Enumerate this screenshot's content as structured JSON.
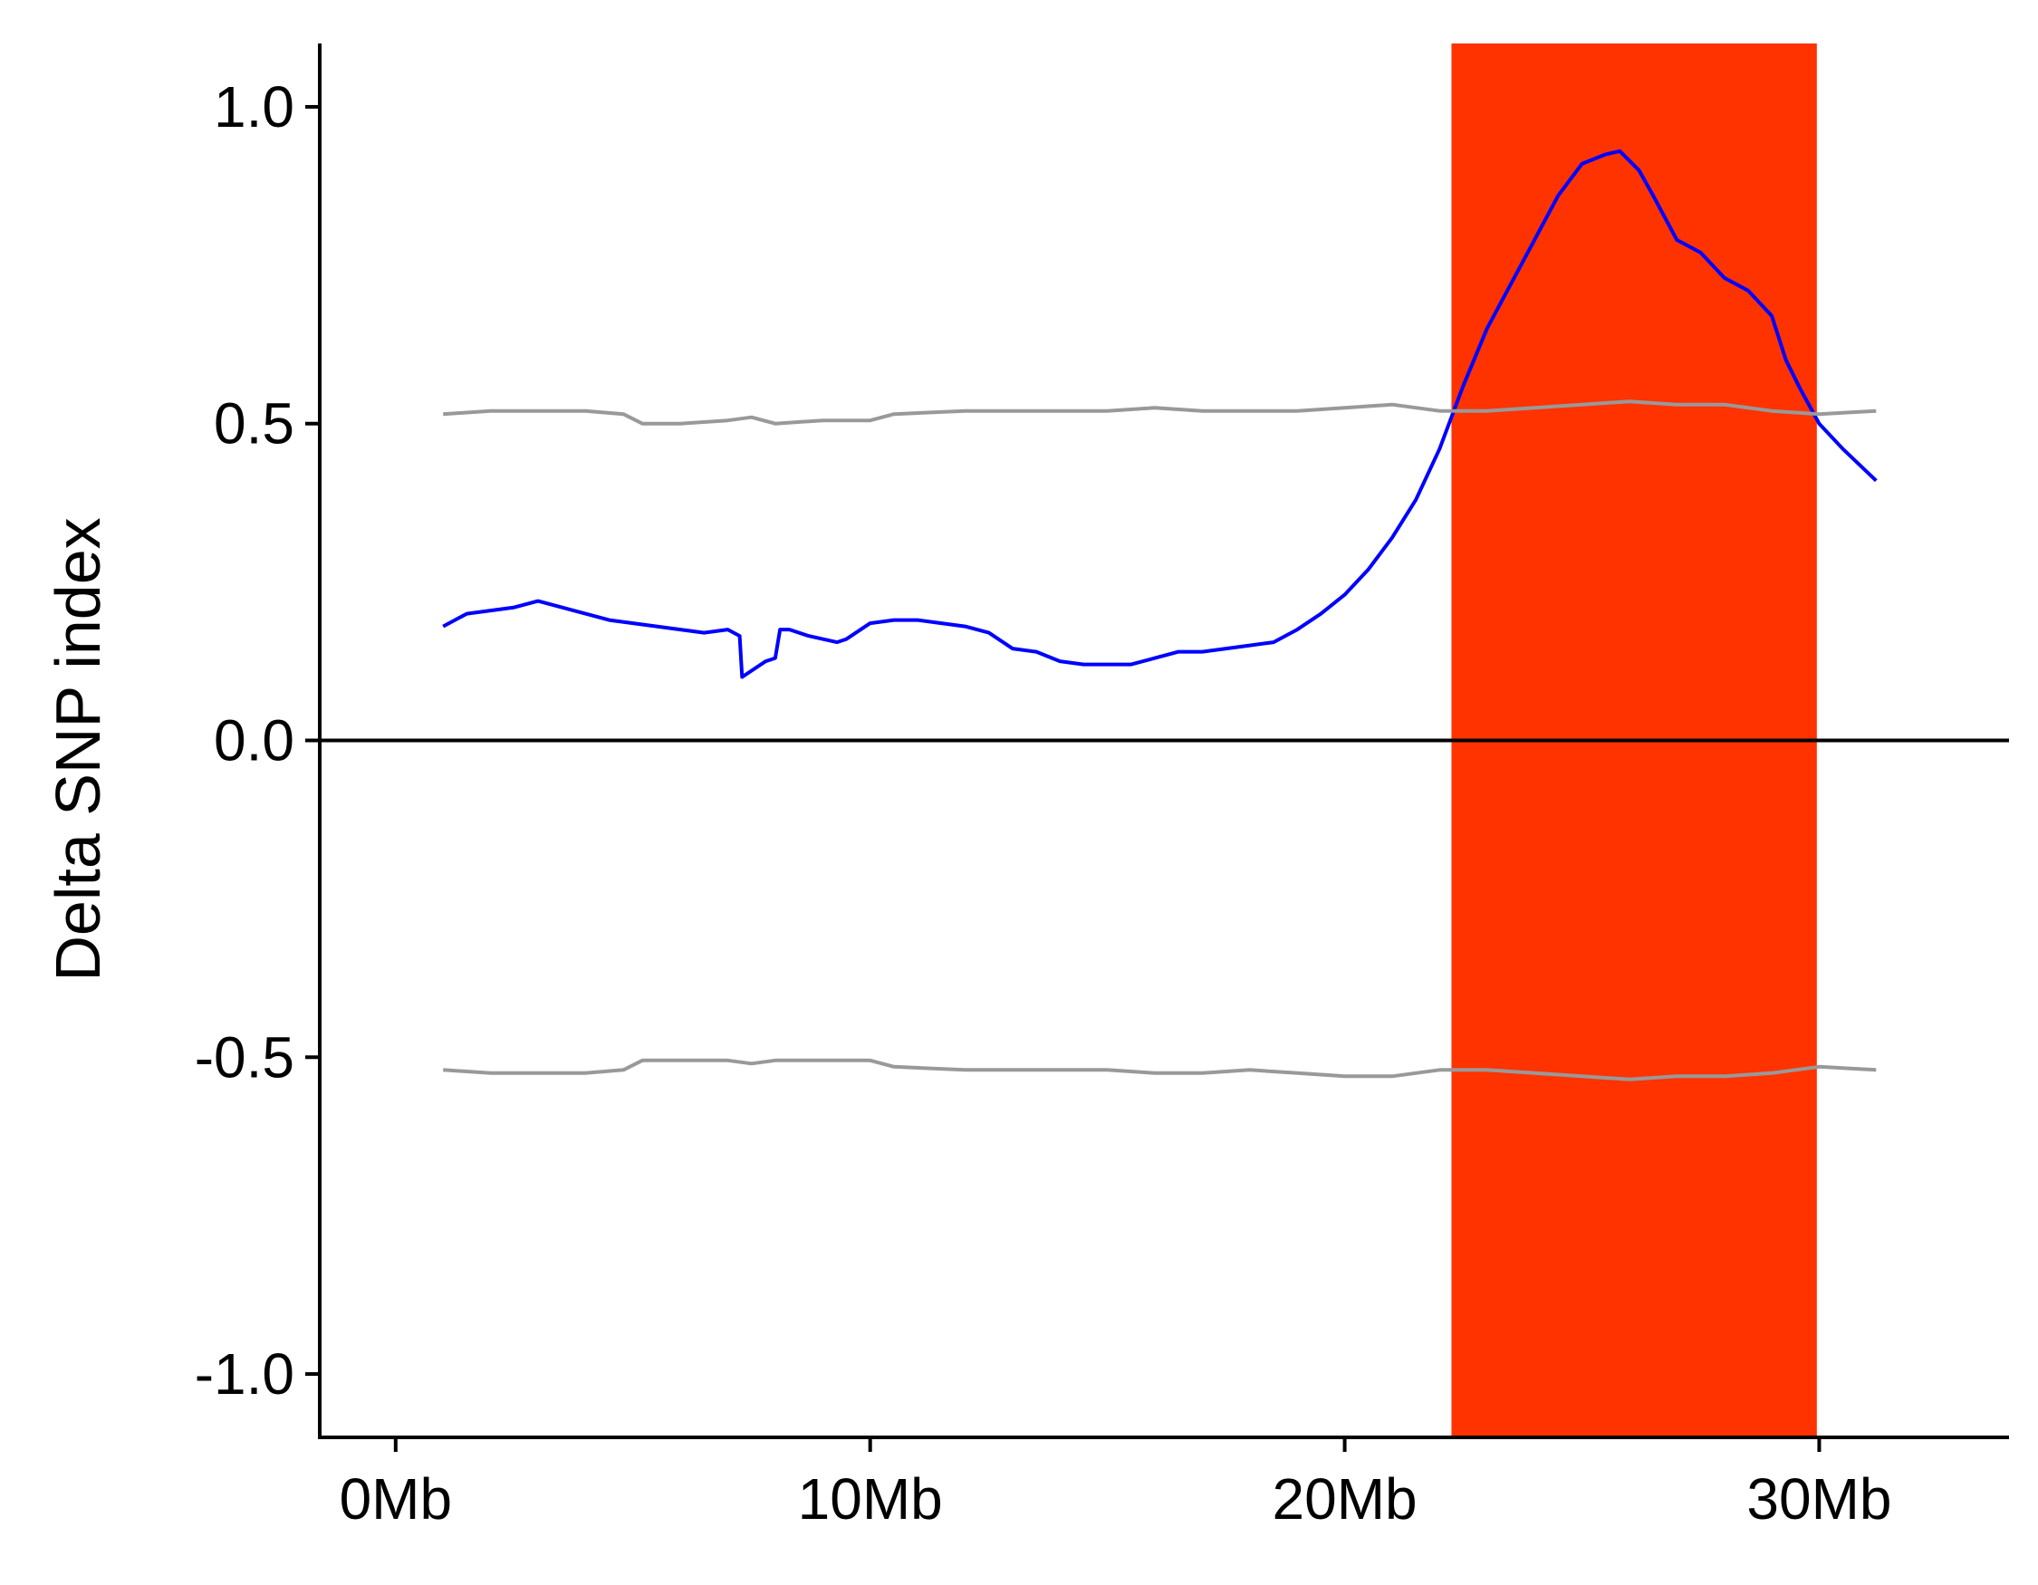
{
  "chart_data": {
    "type": "line",
    "ylabel": "Delta SNP index",
    "xlabel": "",
    "xlim": [
      -1.6,
      34.0
    ],
    "ylim": [
      -1.1,
      1.1
    ],
    "x_ticks": [
      {
        "value": 0,
        "label": "0Mb"
      },
      {
        "value": 10,
        "label": "10Mb"
      },
      {
        "value": 20,
        "label": "20Mb"
      },
      {
        "value": 30,
        "label": "30Mb"
      }
    ],
    "y_ticks": [
      {
        "value": 1.0,
        "label": "1.0"
      },
      {
        "value": 0.5,
        "label": "0.5"
      },
      {
        "value": 0.0,
        "label": "0.0"
      },
      {
        "value": -0.5,
        "label": "-0.5"
      },
      {
        "value": -1.0,
        "label": "-1.0"
      }
    ],
    "zero_line": true,
    "highlight_region": {
      "x_start": 22.25,
      "x_end": 29.95,
      "color": "#ff3300"
    },
    "series": [
      {
        "color": "#0000ff",
        "x": [
          1.0,
          1.5,
          2.0,
          2.5,
          3.0,
          3.5,
          4.0,
          4.5,
          5.0,
          5.5,
          6.0,
          6.5,
          7.0,
          7.25,
          7.3,
          7.8,
          8.0,
          8.1,
          8.3,
          8.7,
          9.0,
          9.3,
          9.5,
          10.0,
          10.5,
          11.0,
          11.5,
          12.0,
          12.5,
          13.0,
          13.5,
          14.0,
          14.5,
          15.0,
          15.5,
          16.0,
          16.5,
          17.0,
          17.5,
          18.0,
          18.5,
          19.0,
          19.5,
          20.0,
          20.5,
          21.0,
          21.5,
          22.0,
          22.25,
          22.5,
          23.0,
          23.5,
          24.0,
          24.5,
          25.0,
          25.5,
          25.8,
          26.2,
          26.5,
          27.0,
          27.5,
          28.0,
          28.5,
          29.0,
          29.3,
          29.6,
          30.0,
          30.5,
          31.2
        ],
        "y": [
          0.18,
          0.2,
          0.205,
          0.21,
          0.22,
          0.21,
          0.2,
          0.19,
          0.185,
          0.18,
          0.175,
          0.17,
          0.175,
          0.165,
          0.1,
          0.125,
          0.13,
          0.175,
          0.175,
          0.165,
          0.16,
          0.155,
          0.16,
          0.185,
          0.19,
          0.19,
          0.185,
          0.18,
          0.17,
          0.145,
          0.14,
          0.125,
          0.12,
          0.12,
          0.12,
          0.13,
          0.14,
          0.14,
          0.145,
          0.15,
          0.155,
          0.175,
          0.2,
          0.23,
          0.27,
          0.32,
          0.38,
          0.46,
          0.51,
          0.56,
          0.65,
          0.72,
          0.79,
          0.86,
          0.91,
          0.925,
          0.93,
          0.9,
          0.86,
          0.79,
          0.77,
          0.73,
          0.71,
          0.67,
          0.6,
          0.555,
          0.5,
          0.46,
          0.41
        ]
      },
      {
        "color": "#999999",
        "x": [
          1.0,
          2.0,
          3.0,
          4.0,
          4.8,
          5.2,
          6.0,
          7.0,
          7.5,
          8.0,
          9.0,
          10.0,
          10.5,
          12.0,
          13.0,
          14.0,
          15.0,
          16.0,
          17.0,
          18.0,
          19.0,
          20.0,
          21.0,
          22.0,
          23.0,
          24.0,
          25.0,
          26.0,
          27.0,
          28.0,
          29.0,
          30.0,
          31.2
        ],
        "y": [
          0.515,
          0.52,
          0.52,
          0.52,
          0.515,
          0.5,
          0.5,
          0.505,
          0.51,
          0.5,
          0.505,
          0.505,
          0.515,
          0.52,
          0.52,
          0.52,
          0.52,
          0.525,
          0.52,
          0.52,
          0.52,
          0.525,
          0.53,
          0.52,
          0.52,
          0.525,
          0.53,
          0.535,
          0.53,
          0.53,
          0.52,
          0.515,
          0.52
        ]
      },
      {
        "color": "#999999",
        "x": [
          1.0,
          2.0,
          3.0,
          4.0,
          4.8,
          5.2,
          6.0,
          7.0,
          7.5,
          8.0,
          9.0,
          10.0,
          10.5,
          12.0,
          13.0,
          14.0,
          15.0,
          16.0,
          17.0,
          18.0,
          19.0,
          20.0,
          21.0,
          22.0,
          23.0,
          24.0,
          25.0,
          26.0,
          27.0,
          28.0,
          29.0,
          30.0,
          31.2
        ],
        "y": [
          -0.52,
          -0.525,
          -0.525,
          -0.525,
          -0.52,
          -0.505,
          -0.505,
          -0.505,
          -0.51,
          -0.505,
          -0.505,
          -0.505,
          -0.515,
          -0.52,
          -0.52,
          -0.52,
          -0.52,
          -0.525,
          -0.525,
          -0.52,
          -0.525,
          -0.53,
          -0.53,
          -0.52,
          -0.52,
          -0.525,
          -0.53,
          -0.535,
          -0.53,
          -0.53,
          -0.525,
          -0.515,
          -0.52
        ]
      }
    ]
  }
}
